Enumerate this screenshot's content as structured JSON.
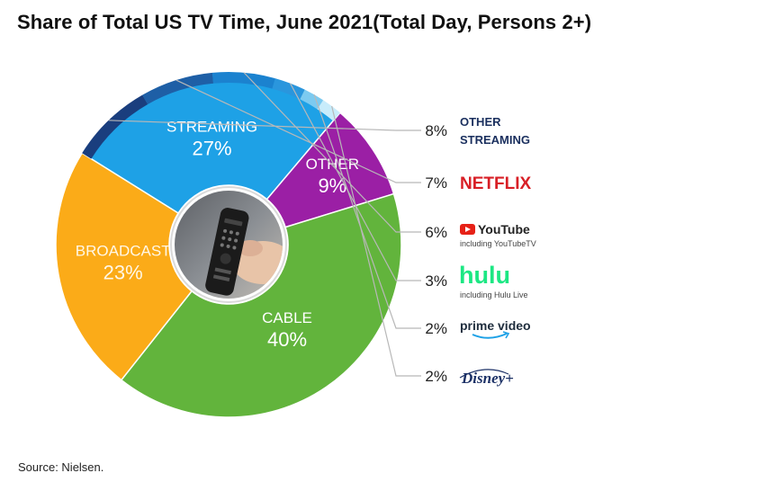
{
  "title": "Share of Total US TV Time, June 2021(Total Day, Persons 2+)",
  "source": "Source: Nielsen.",
  "chart_data": {
    "type": "pie",
    "style": "donut",
    "slices": [
      {
        "label": "STREAMING",
        "value": 27,
        "value_label": "27%",
        "color": "#1ea1e6"
      },
      {
        "label": "OTHER",
        "value": 9,
        "value_label": "9%",
        "color": "#9b1fa5"
      },
      {
        "label": "CABLE",
        "value": 40,
        "value_label": "40%",
        "color": "#62b43c"
      },
      {
        "label": "BROADCAST",
        "value": 23,
        "value_label": "23%",
        "color": "#fbab18"
      }
    ],
    "streaming_breakdown": [
      {
        "name": "OTHER STREAMING",
        "lines": [
          "OTHER",
          "STREAMING"
        ],
        "value": 8,
        "value_label": "8%",
        "color": "#1a3e7e",
        "icon": "other-streaming-logo"
      },
      {
        "name": "NETFLIX",
        "value": 7,
        "value_label": "7%",
        "color": "#1e5fa6",
        "icon": "netflix-logo"
      },
      {
        "name": "YouTube",
        "sublabel": "including YouTubeTV",
        "value": 6,
        "value_label": "6%",
        "color": "#1b82cf",
        "icon": "youtube-logo"
      },
      {
        "name": "hulu",
        "sublabel": "including Hulu Live",
        "value": 3,
        "value_label": "3%",
        "color": "#2a96dd",
        "icon": "hulu-logo"
      },
      {
        "name": "prime video",
        "value": 2,
        "value_label": "2%",
        "color": "#7ccaf0",
        "icon": "prime-video-logo"
      },
      {
        "name": "Disney+",
        "value": 2,
        "value_label": "2%",
        "color": "#c8ecfb",
        "icon": "disney-plus-logo"
      }
    ],
    "center_image": "tv-remote-photo"
  }
}
